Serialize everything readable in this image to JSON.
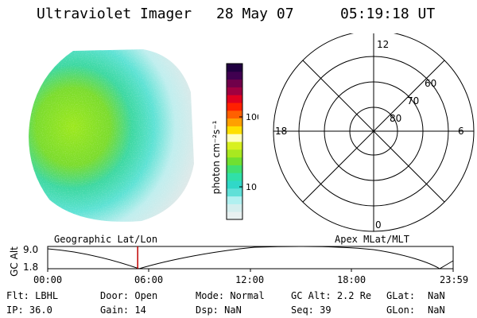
{
  "header": {
    "instrument": "Ultraviolet Imager",
    "date": "28 May 07",
    "time": "05:19:18 UT"
  },
  "colorbar": {
    "label": "photon cm⁻²s⁻¹",
    "ticks": [
      "100",
      "10"
    ],
    "colors": [
      "#e8f0f0",
      "#d4eeee",
      "#b0f0f0",
      "#60e0d8",
      "#30d8c8",
      "#30e0a8",
      "#40e070",
      "#70e030",
      "#a8e820",
      "#d8f020",
      "#ffffc0",
      "#ffe000",
      "#ffa000",
      "#ff6000",
      "#ff2000",
      "#e00020",
      "#a00040",
      "#70004a",
      "#400050",
      "#200040"
    ]
  },
  "polar": {
    "labels": {
      "top": "12",
      "bottom": "0",
      "left": "18",
      "right": "6",
      "r60": "60",
      "r70": "70",
      "r80": "80"
    }
  },
  "timeline": {
    "left_label": "Geographic Lat/Lon",
    "right_label": "Apex MLat/MLT",
    "axis_title": "GC Alt",
    "y_ticks": [
      "9.0",
      "1.8"
    ],
    "x_ticks": [
      "00:00",
      "06:00",
      "12:00",
      "18:00",
      "23:59"
    ],
    "current_time_fraction": 0.222
  },
  "info": {
    "row1": [
      {
        "label": "Flt:",
        "value": "LBHL"
      },
      {
        "label": "Door:",
        "value": "Open"
      },
      {
        "label": "Mode:",
        "value": "Normal"
      },
      {
        "label": "GC Alt:",
        "value": "2.2 Re"
      },
      {
        "label": "GLat:",
        "value": "NaN"
      }
    ],
    "row2": [
      {
        "label": "IP:",
        "value": "36.0"
      },
      {
        "label": "Gain:",
        "value": "14"
      },
      {
        "label": "Dsp:",
        "value": "NaN"
      },
      {
        "label": "Seq:",
        "value": "39"
      },
      {
        "label": "GLon:",
        "value": "NaN"
      }
    ]
  }
}
